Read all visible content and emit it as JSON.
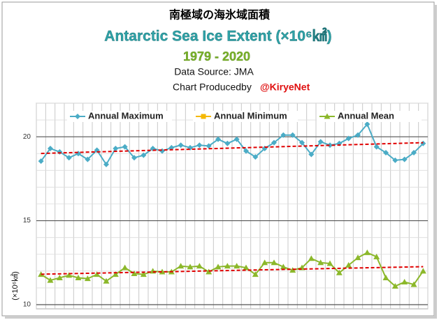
{
  "chart_data": {
    "type": "line",
    "title": "南極域の海氷域面積",
    "subtitle": "Antarctic Sea Ice Extent (×10⁶㎢)",
    "period": "1979 - 2020",
    "source": "Data Source: JMA",
    "credit": {
      "text": "Chart Producedby",
      "handle": "@KiryeNet"
    },
    "ylabel": "(×10⁶㎢)",
    "categories": [
      null,
      null,
      null,
      null,
      null,
      null,
      null,
      null,
      null,
      null,
      null,
      null,
      null,
      null,
      null,
      null,
      null,
      null,
      null,
      null,
      null,
      null,
      null,
      null,
      null,
      null,
      null,
      null,
      null,
      null,
      null,
      null,
      null,
      null,
      null,
      null,
      null,
      null,
      null,
      null,
      null,
      null
    ],
    "series": [
      {
        "name": "Annual Maximum",
        "color": "#4bacc6",
        "marker": "diamond",
        "values": [
          18.55,
          19.3,
          19.1,
          18.75,
          19.0,
          18.65,
          19.2,
          18.35,
          19.3,
          19.4,
          18.75,
          18.9,
          19.3,
          19.15,
          19.35,
          19.5,
          19.35,
          19.5,
          19.45,
          19.85,
          19.6,
          19.85,
          19.15,
          18.8,
          19.3,
          19.65,
          20.1,
          20.1,
          19.65,
          18.95,
          19.7,
          19.5,
          19.6,
          19.9,
          20.1,
          20.75,
          19.4,
          19.05,
          18.6,
          18.65,
          19.05,
          19.6
        ]
      },
      {
        "name": "Annual Minimum",
        "color": "#f5b800",
        "marker": "square",
        "values": [
          null,
          null,
          null,
          null,
          null,
          null,
          null,
          null,
          null,
          null,
          null,
          null,
          null,
          null,
          null,
          null,
          null,
          null,
          null,
          null,
          null,
          null,
          null,
          null,
          null,
          null,
          null,
          null,
          null,
          null,
          null,
          null,
          null,
          null,
          null,
          null,
          null,
          null,
          null,
          null,
          null,
          null
        ]
      },
      {
        "name": "Annual Mean",
        "color": "#8cb82b",
        "marker": "triangle",
        "values": [
          11.8,
          11.45,
          11.6,
          11.75,
          11.6,
          11.55,
          11.8,
          11.4,
          11.8,
          12.2,
          11.85,
          11.8,
          12.0,
          11.95,
          11.95,
          12.3,
          12.25,
          12.3,
          11.95,
          12.25,
          12.3,
          12.3,
          12.2,
          11.8,
          12.5,
          12.5,
          12.25,
          12.05,
          12.2,
          12.75,
          12.5,
          12.45,
          11.9,
          12.35,
          12.8,
          13.1,
          12.85,
          11.6,
          11.1,
          11.35,
          11.2,
          12.0
        ]
      }
    ],
    "trend_color": "#e00000",
    "ylim": [
      10,
      22
    ],
    "yticks": [
      10,
      15,
      20
    ],
    "grid": true
  }
}
